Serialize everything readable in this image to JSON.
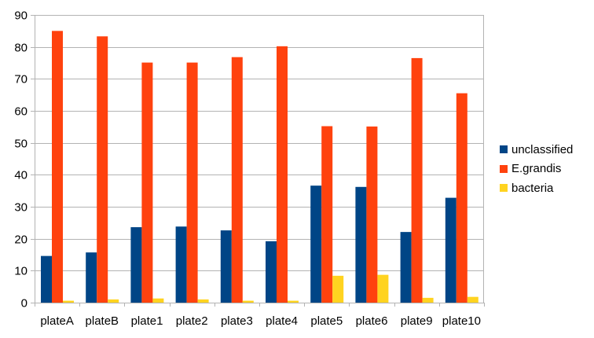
{
  "chart_data": {
    "type": "bar",
    "title": "",
    "xlabel": "",
    "ylabel": "",
    "ylim": [
      0,
      90
    ],
    "y_ticks": [
      "0",
      "10",
      "20",
      "30",
      "40",
      "50",
      "60",
      "70",
      "80",
      "90"
    ],
    "grid": "horizontal",
    "legend_position": "right",
    "categories": [
      "plateA",
      "plateB",
      "plate1",
      "plate2",
      "plate3",
      "plate4",
      "plate5",
      "plate6",
      "plate9",
      "plate10"
    ],
    "series": [
      {
        "name": "unclassified",
        "color": "#004586",
        "values": [
          14.6,
          15.7,
          23.6,
          23.8,
          22.6,
          19.2,
          36.6,
          36.2,
          22.1,
          32.8
        ]
      },
      {
        "name": "E.grandis",
        "color": "#ff420e",
        "values": [
          85.0,
          83.3,
          75.1,
          75.1,
          76.8,
          80.2,
          55.2,
          55.1,
          76.5,
          65.5
        ]
      },
      {
        "name": "bacteria",
        "color": "#ffd320",
        "values": [
          0.6,
          1.0,
          1.3,
          1.0,
          0.6,
          0.6,
          8.4,
          8.7,
          1.5,
          1.8
        ]
      }
    ]
  }
}
